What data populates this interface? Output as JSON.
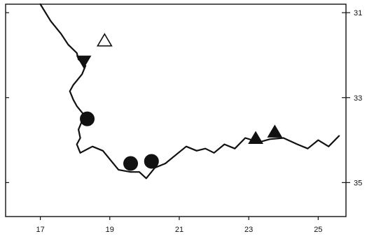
{
  "chart_data": {
    "type": "scatter",
    "title": "",
    "xlabel": "",
    "ylabel": "",
    "xlim": [
      16.0,
      25.8
    ],
    "ylim": [
      35.8,
      30.8
    ],
    "x_ticks": [
      {
        "value": 17,
        "label": "17"
      },
      {
        "value": 19,
        "label": "19"
      },
      {
        "value": 21,
        "label": "21"
      },
      {
        "value": 23,
        "label": "23"
      },
      {
        "value": 25,
        "label": "25"
      }
    ],
    "y_ticks": [
      {
        "value": 31,
        "label": "31"
      },
      {
        "value": 33,
        "label": "33"
      },
      {
        "value": 35,
        "label": "35"
      }
    ],
    "grid": false,
    "coastline": [
      [
        17.0,
        30.8
      ],
      [
        17.3,
        31.2
      ],
      [
        17.6,
        31.5
      ],
      [
        17.8,
        31.75
      ],
      [
        18.05,
        31.95
      ],
      [
        18.1,
        32.1
      ],
      [
        18.3,
        32.25
      ],
      [
        18.2,
        32.45
      ],
      [
        18.05,
        32.6
      ],
      [
        17.95,
        32.7
      ],
      [
        17.85,
        32.85
      ],
      [
        17.95,
        33.05
      ],
      [
        18.05,
        33.2
      ],
      [
        18.25,
        33.4
      ],
      [
        18.2,
        33.55
      ],
      [
        18.1,
        33.75
      ],
      [
        18.15,
        33.95
      ],
      [
        18.05,
        34.1
      ],
      [
        18.15,
        34.3
      ],
      [
        18.5,
        34.15
      ],
      [
        18.8,
        34.25
      ],
      [
        19.0,
        34.45
      ],
      [
        19.25,
        34.7
      ],
      [
        19.6,
        34.75
      ],
      [
        19.85,
        34.75
      ],
      [
        20.05,
        34.9
      ],
      [
        20.3,
        34.65
      ],
      [
        20.6,
        34.55
      ],
      [
        20.9,
        34.35
      ],
      [
        21.2,
        34.15
      ],
      [
        21.5,
        34.25
      ],
      [
        21.75,
        34.2
      ],
      [
        22.0,
        34.3
      ],
      [
        22.3,
        34.1
      ],
      [
        22.6,
        34.2
      ],
      [
        22.9,
        33.95
      ],
      [
        23.3,
        34.05
      ],
      [
        23.6,
        33.98
      ],
      [
        24.0,
        33.95
      ],
      [
        24.4,
        34.1
      ],
      [
        24.7,
        34.2
      ],
      [
        25.0,
        34.0
      ],
      [
        25.3,
        34.15
      ],
      [
        25.6,
        33.9
      ]
    ],
    "series": [
      {
        "symbol": "triangle-open",
        "points": [
          {
            "x": 18.85,
            "y": 31.65
          }
        ]
      },
      {
        "symbol": "triangle-down-filled",
        "points": [
          {
            "x": 18.25,
            "y": 32.15
          }
        ]
      },
      {
        "symbol": "circle-filled",
        "points": [
          {
            "x": 18.35,
            "y": 33.5
          },
          {
            "x": 19.6,
            "y": 34.55
          },
          {
            "x": 20.2,
            "y": 34.5
          }
        ]
      },
      {
        "symbol": "triangle-up-filled",
        "points": [
          {
            "x": 23.2,
            "y": 33.95
          },
          {
            "x": 23.75,
            "y": 33.8
          }
        ]
      }
    ]
  }
}
